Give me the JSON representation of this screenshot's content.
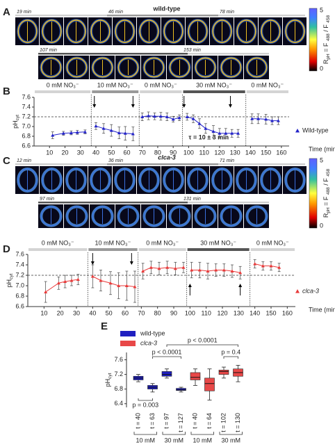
{
  "image_panels": [
    {
      "panel": "A",
      "title": "wild-type",
      "title_color": "#6a2fd0",
      "title_italic": false,
      "time_labels": [
        "19 min",
        "46 min",
        "78 min",
        "107 min",
        "153 min"
      ]
    },
    {
      "panel": "C",
      "title": "clca-3",
      "title_color": "#e8501e",
      "title_italic": true,
      "time_labels": [
        "12 min",
        "36 min",
        "71 min",
        "97 min",
        "131 min"
      ]
    }
  ],
  "colorbar": {
    "ticks": [
      5,
      0
    ],
    "label": [
      "R",
      "pH",
      " = F ",
      "488",
      " / F ",
      "458"
    ]
  },
  "chart_data": [
    {
      "panel": "B",
      "type": "line",
      "xlabel": "Time (min)",
      "ylabel": [
        "pH",
        "cyt"
      ],
      "x": [
        12,
        19,
        24,
        28,
        33,
        36,
        40,
        45,
        50,
        55,
        59,
        64,
        67,
        70,
        74,
        78,
        82,
        86,
        90,
        94,
        96,
        99,
        103,
        107,
        111,
        116,
        120,
        124,
        128,
        132,
        137,
        141,
        145,
        150,
        154,
        158
      ],
      "series": [
        {
          "name": "Wild-type",
          "color": "#2323c8",
          "legend_italic": false,
          "values": [
            6.82,
            6.86,
            6.87,
            6.88,
            6.89,
            null,
            7.01,
            6.96,
            6.92,
            6.87,
            6.86,
            6.85,
            null,
            7.2,
            7.22,
            7.21,
            7.21,
            7.2,
            7.15,
            7.18,
            null,
            7.2,
            7.16,
            7.06,
            6.96,
            6.9,
            6.86,
            6.86,
            6.86,
            6.86,
            null,
            7.16,
            7.16,
            7.15,
            7.12,
            7.12
          ],
          "errors": [
            0.07,
            0.04,
            0.04,
            0.04,
            0.04,
            null,
            0.07,
            0.1,
            0.12,
            0.12,
            0.14,
            0.14,
            null,
            0.08,
            0.08,
            0.07,
            0.08,
            0.08,
            0.06,
            0.06,
            null,
            0.07,
            0.08,
            0.1,
            0.1,
            0.12,
            0.1,
            0.1,
            0.08,
            0.08,
            null,
            0.1,
            0.1,
            0.1,
            0.08,
            0.08
          ]
        }
      ],
      "xlim": [
        0,
        165
      ],
      "ylim": [
        6.6,
        7.6
      ],
      "xticks": [
        10,
        20,
        30,
        40,
        50,
        60,
        70,
        80,
        90,
        100,
        110,
        120,
        130,
        140,
        150,
        160
      ],
      "yticks": [
        6.6,
        6.8,
        {
          "value": 7,
          "label": "7.0"
        },
        7.2,
        7.4,
        7.6
      ],
      "reference_line": 7.2,
      "treatments": [
        {
          "label": "0 mM NO₃⁻",
          "start": 0,
          "end": 37,
          "color": "#d4d4d4"
        },
        {
          "label": "10 mM NO₃⁻",
          "start": 37,
          "end": 68,
          "color": "#9a9a9a"
        },
        {
          "label": "0 mM NO₃⁻",
          "start": 68,
          "end": 96,
          "color": "#d4d4d4"
        },
        {
          "label": "30 mM NO₃⁻",
          "start": 96,
          "end": 137,
          "color": "#555555"
        },
        {
          "label": "0 mM NO₃⁻",
          "start": 137,
          "end": 165,
          "color": "#d4d4d4"
        }
      ],
      "arrows": [
        {
          "x": 39,
          "direction": "down"
        },
        {
          "x": 64,
          "direction": "down"
        },
        {
          "x": 97,
          "direction": "down"
        },
        {
          "x": 127,
          "direction": "down"
        }
      ],
      "annotation": "τ = 10 ± 3 min"
    },
    {
      "panel": "D",
      "type": "line",
      "xlabel": "Time (min)",
      "ylabel": [
        "pH",
        "cyt"
      ],
      "x": [
        11,
        19,
        23,
        27,
        31,
        36,
        40,
        45,
        51,
        56,
        61,
        66,
        68,
        71,
        76,
        81,
        86,
        91,
        96,
        98,
        101,
        106,
        111,
        116,
        121,
        126,
        131,
        137,
        140,
        145,
        150,
        155
      ],
      "series": [
        {
          "name": "clca-3",
          "color": "#e83a3a",
          "legend_italic": true,
          "values": [
            6.88,
            7.05,
            7.08,
            7.1,
            7.12,
            null,
            7.18,
            7.1,
            7.05,
            7.0,
            7.0,
            6.98,
            null,
            7.28,
            7.35,
            7.33,
            7.35,
            7.33,
            7.35,
            null,
            7.3,
            7.3,
            7.28,
            7.3,
            7.3,
            7.28,
            7.25,
            null,
            7.42,
            7.38,
            7.38,
            7.35
          ],
          "errors": [
            0.2,
            0.12,
            0.12,
            0.1,
            0.1,
            null,
            0.22,
            0.2,
            0.22,
            0.25,
            0.28,
            0.3,
            null,
            0.15,
            0.12,
            0.12,
            0.12,
            0.12,
            0.1,
            null,
            0.15,
            0.15,
            0.15,
            0.12,
            0.12,
            0.12,
            0.12,
            null,
            0.08,
            0.08,
            0.08,
            0.08
          ]
        }
      ],
      "xlim": [
        0,
        165
      ],
      "ylim": [
        6.6,
        7.6
      ],
      "xticks": [
        10,
        20,
        30,
        40,
        50,
        60,
        70,
        80,
        90,
        100,
        110,
        120,
        130,
        140,
        150,
        160
      ],
      "yticks": [
        6.6,
        6.8,
        {
          "value": 7,
          "label": "7.0"
        },
        7.2,
        7.4,
        7.6
      ],
      "reference_line": 7.2,
      "treatments": [
        {
          "label": "0 mM NO₃⁻",
          "start": 0,
          "end": 37,
          "color": "#d4d4d4"
        },
        {
          "label": "10 mM NO₃⁻",
          "start": 37,
          "end": 68,
          "color": "#9a9a9a"
        },
        {
          "label": "0 mM NO₃⁻",
          "start": 68,
          "end": 98,
          "color": "#d4d4d4"
        },
        {
          "label": "30 mM NO₃⁻",
          "start": 98,
          "end": 137,
          "color": "#555555"
        },
        {
          "label": "0 mM NO₃⁻",
          "start": 137,
          "end": 165,
          "color": "#d4d4d4"
        }
      ],
      "arrows": [
        {
          "x": 40,
          "direction": "down"
        },
        {
          "x": 64,
          "direction": "down"
        },
        {
          "x": 100,
          "direction": "up"
        },
        {
          "x": 131,
          "direction": "up"
        }
      ]
    },
    {
      "panel": "E",
      "type": "box",
      "ylabel": [
        "pH",
        "cyt"
      ],
      "categories": [
        "t = 40",
        "t = 63",
        "t = 97",
        "t = 127",
        "t = 40",
        "t = 64",
        "t = 102",
        "t = 130"
      ],
      "groups": [
        "10 mM",
        "30 mM",
        "10 mM",
        "30 mM"
      ],
      "series": [
        {
          "name": "wild-type",
          "color": "#1f1fc0",
          "legend_italic": false,
          "values": [
            {
              "min": 7.0,
              "q1": 7.05,
              "median": 7.1,
              "q3": 7.15,
              "max": 7.2
            },
            {
              "min": 6.72,
              "q1": 6.8,
              "median": 6.85,
              "q3": 6.9,
              "max": 6.95
            },
            {
              "min": 7.1,
              "q1": 7.15,
              "median": 7.2,
              "q3": 7.28,
              "max": 7.35
            },
            {
              "min": 6.72,
              "q1": 6.76,
              "median": 6.78,
              "q3": 6.82,
              "max": 6.85
            },
            null,
            null,
            null,
            null
          ]
        },
        {
          "name": "clca-3",
          "color": "#e84848",
          "legend_italic": true,
          "values": [
            null,
            null,
            null,
            null,
            {
              "min": 6.9,
              "q1": 7.05,
              "median": 7.12,
              "q3": 7.25,
              "max": 7.35
            },
            {
              "min": 6.5,
              "q1": 6.75,
              "median": 6.95,
              "q3": 7.1,
              "max": 7.35
            },
            {
              "min": 7.1,
              "q1": 7.2,
              "median": 7.28,
              "q3": 7.32,
              "max": 7.4
            },
            {
              "min": 7.0,
              "q1": 7.15,
              "median": 7.25,
              "q3": 7.35,
              "max": 7.45
            }
          ]
        }
      ],
      "ylim": [
        6.3,
        7.8
      ],
      "yticks": [
        6.4,
        6.8,
        7.2,
        7.6
      ],
      "annotations": [
        "p = 0.003",
        "p < 0.0001",
        "p < 0.0001",
        "p = 0.4"
      ]
    }
  ]
}
